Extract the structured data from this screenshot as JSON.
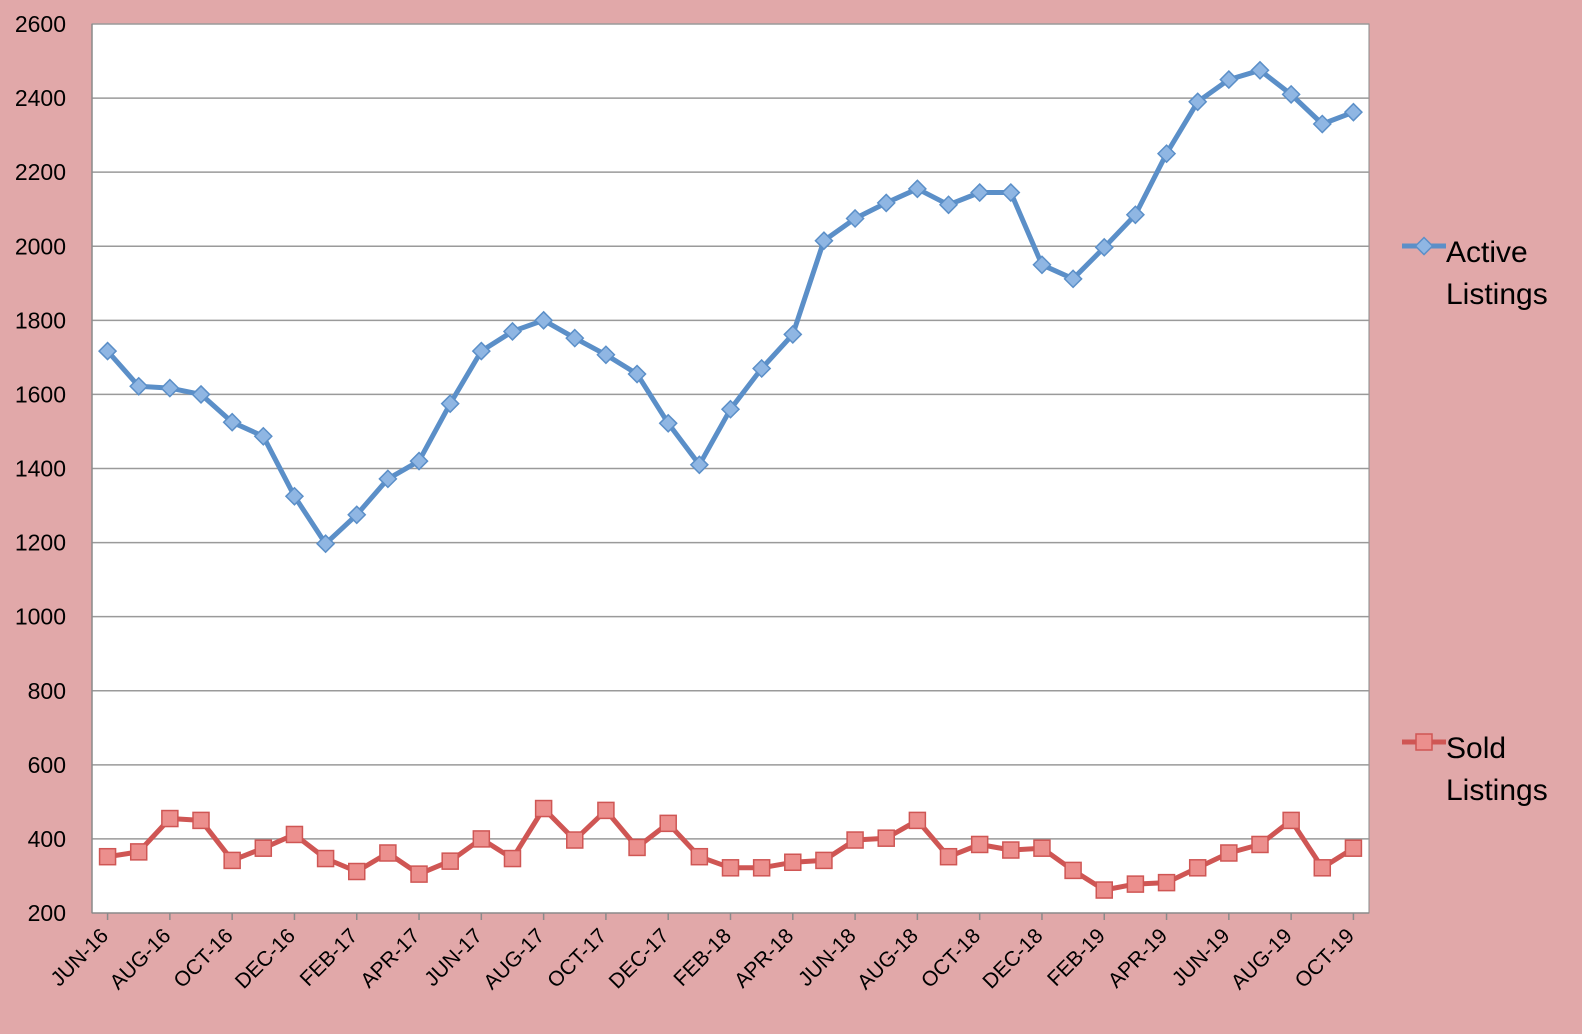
{
  "chart_data": {
    "type": "line",
    "title": "",
    "xlabel": "",
    "ylabel": "",
    "ylim": [
      200,
      2600
    ],
    "yticks": [
      200,
      400,
      600,
      800,
      1000,
      1200,
      1400,
      1600,
      1800,
      2000,
      2200,
      2400,
      2600
    ],
    "grid": "horizontal",
    "legend_position": "right",
    "categories": [
      "JUN-16",
      "JUL-16",
      "AUG-16",
      "SEP-16",
      "OCT-16",
      "NOV-16",
      "DEC-16",
      "JAN-17",
      "FEB-17",
      "MAR-17",
      "APR-17",
      "MAY-17",
      "JUN-17",
      "JUL-17",
      "AUG-17",
      "SEP-17",
      "OCT-17",
      "NOV-17",
      "DEC-17",
      "JAN-18",
      "FEB-18",
      "MAR-18",
      "APR-18",
      "MAY-18",
      "JUN-18",
      "JUL-18",
      "AUG-18",
      "SEP-18",
      "OCT-18",
      "NOV-18",
      "DEC-18",
      "JAN-19",
      "FEB-19",
      "MAR-19",
      "APR-19",
      "MAY-19",
      "JUN-19",
      "JUL-19",
      "AUG-19",
      "SEP-19",
      "OCT-19"
    ],
    "x_tick_labels": [
      "JUN-16",
      "AUG-16",
      "OCT-16",
      "DEC-16",
      "FEB-17",
      "APR-17",
      "JUN-17",
      "AUG-17",
      "OCT-17",
      "DEC-17",
      "FEB-18",
      "APR-18",
      "JUN-18",
      "AUG-18",
      "OCT-18",
      "DEC-18",
      "FEB-19",
      "APR-19",
      "JUN-19",
      "AUG-19",
      "OCT-19"
    ],
    "series": [
      {
        "name": "Active Listings",
        "legend_lines": [
          "Active",
          "Listings"
        ],
        "color": "#5b8fc8",
        "marker_color": "#8fb6e3",
        "marker": "diamond",
        "values": [
          1717,
          1622,
          1617,
          1600,
          1525,
          1487,
          1325,
          1197,
          1275,
          1372,
          1420,
          1575,
          1717,
          1770,
          1800,
          1752,
          1707,
          1655,
          1522,
          1410,
          1560,
          1670,
          1762,
          2015,
          2075,
          2117,
          2155,
          2112,
          2145,
          2145,
          1950,
          1912,
          1997,
          2085,
          2250,
          2390,
          2450,
          2475,
          2410,
          2330,
          2362
        ]
      },
      {
        "name": "Sold Listings",
        "legend_lines": [
          "Sold",
          "Listings"
        ],
        "color": "#cf5654",
        "marker_color": "#ec8f8d",
        "marker": "square",
        "values": [
          352,
          365,
          455,
          450,
          342,
          375,
          412,
          347,
          312,
          362,
          305,
          340,
          400,
          347,
          482,
          397,
          477,
          377,
          442,
          352,
          322,
          322,
          337,
          342,
          397,
          402,
          450,
          352,
          385,
          370,
          375,
          315,
          262,
          278,
          282,
          322,
          362,
          385,
          450,
          322,
          375
        ]
      }
    ]
  }
}
